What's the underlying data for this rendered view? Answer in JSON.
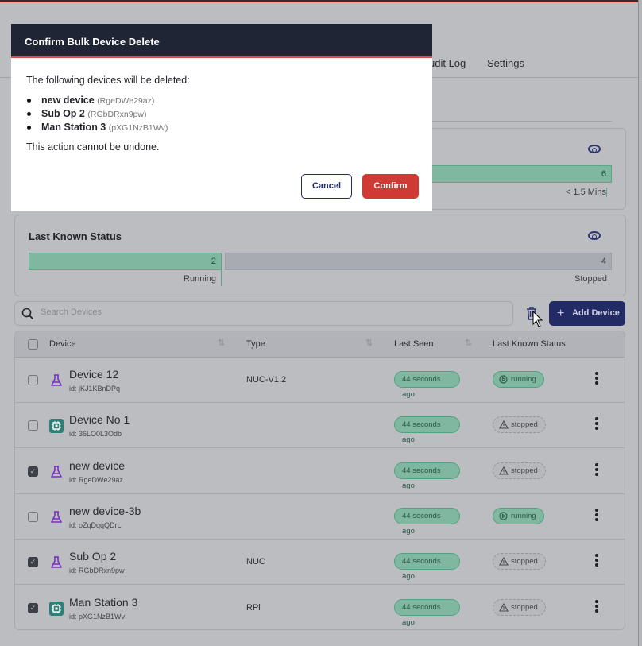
{
  "nav": {
    "tabs": [
      {
        "label": "udit Log"
      },
      {
        "label": "Settings"
      }
    ]
  },
  "cards": {
    "last_seen": {
      "value": "6",
      "label": "< 1.5 Mins"
    },
    "status": {
      "title": "Last Known Status",
      "running_count": "2",
      "running_label": "Running",
      "stopped_count": "4",
      "stopped_label": "Stopped",
      "running_fraction": 0.333
    }
  },
  "search": {
    "placeholder": "Search Devices"
  },
  "toolbar": {
    "add_label": "Add Device"
  },
  "table": {
    "headers": [
      "Device",
      "Type",
      "Last Seen",
      "Last Known Status"
    ],
    "rows": [
      {
        "name": "Device 12",
        "id": "id: jKJ1KBnDPq",
        "type": "NUC-V1.2",
        "seen": "44 seconds ago",
        "status": "running",
        "checked": false,
        "icon": "flask-icon"
      },
      {
        "name": "Device No 1",
        "id": "id: 36LO0L3Odb",
        "type": "",
        "seen": "44 seconds ago",
        "status": "stopped",
        "checked": false,
        "icon": "chip-icon"
      },
      {
        "name": "new device",
        "id": "id: RgeDWe29az",
        "type": "",
        "seen": "44 seconds ago",
        "status": "stopped",
        "checked": true,
        "icon": "flask-icon"
      },
      {
        "name": "new device-3b",
        "id": "id: oZqDqqQDrL",
        "type": "",
        "seen": "44 seconds ago",
        "status": "running",
        "checked": false,
        "icon": "flask-icon"
      },
      {
        "name": "Sub Op 2",
        "id": "id: RGbDRxn9pw",
        "type": "NUC",
        "seen": "44 seconds ago",
        "status": "stopped",
        "checked": true,
        "icon": "flask-icon"
      },
      {
        "name": "Man Station 3",
        "id": "id: pXG1NzB1Wv",
        "type": "RPi",
        "seen": "44 seconds ago",
        "status": "stopped",
        "checked": true,
        "icon": "chip-icon"
      }
    ]
  },
  "modal": {
    "title": "Confirm Bulk Device Delete",
    "intro": "The following devices will be deleted:",
    "items": [
      {
        "name": "new device",
        "id": "(RgeDWe29az)"
      },
      {
        "name": "Sub Op 2",
        "id": "(RGbDRxn9pw)"
      },
      {
        "name": "Man Station 3",
        "id": "(pXG1NzB1Wv)"
      }
    ],
    "warning": "This action cannot be undone.",
    "cancel": "Cancel",
    "confirm": "Confirm"
  },
  "colors": {
    "primary": "#232b66",
    "danger": "#cf3a34",
    "success": "#4fa27f",
    "modal_header": "#1f2535"
  }
}
